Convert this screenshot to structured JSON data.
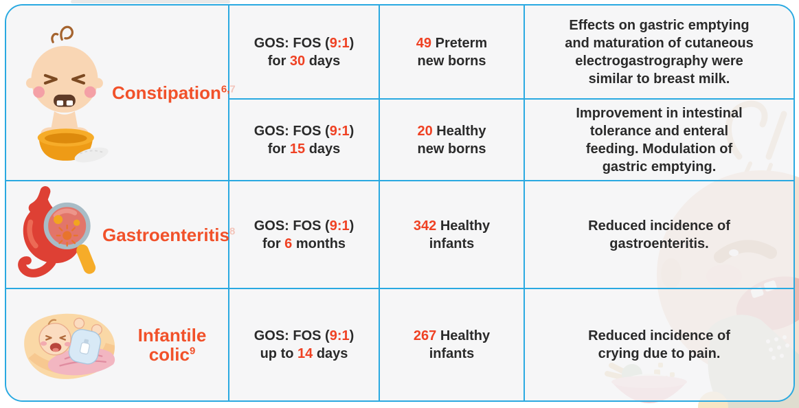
{
  "palette": {
    "table_border_blue": "#29A9E1",
    "cell_background": "#F3F3F4",
    "text_dark": "#2A2A2A",
    "condition_orange": "#F1512A",
    "highlight_orange": "#EF4123"
  },
  "conditions": [
    {
      "label": "Constipation",
      "ref": "6,7",
      "icon": "baby-on-potty-icon"
    },
    {
      "label": "Gastroenteritis",
      "ref": "8",
      "icon": "stomach-magnifier-icon"
    },
    {
      "label": "Infantile colic",
      "ref": "9",
      "icon": "crying-baby-blanket-icon"
    }
  ],
  "studies": [
    {
      "dose_line1": [
        [
          "GOS: FOS (",
          0
        ],
        [
          "9:1",
          1
        ],
        [
          ")",
          0
        ]
      ],
      "dose_line2": [
        [
          "for ",
          0
        ],
        [
          "30",
          1
        ],
        [
          " days",
          0
        ]
      ],
      "subjects_line1": [
        [
          "49",
          1
        ],
        [
          " Preterm",
          0
        ]
      ],
      "subjects_line2": [
        [
          "new borns",
          0
        ]
      ],
      "outcome_lines": [
        "Effects on gastric emptying",
        "and maturation of cutaneous",
        "electrogastrography were",
        "similar to breast milk."
      ]
    },
    {
      "dose_line1": [
        [
          "GOS: FOS (",
          0
        ],
        [
          "9:1",
          1
        ],
        [
          ")",
          0
        ]
      ],
      "dose_line2": [
        [
          "for ",
          0
        ],
        [
          "15",
          1
        ],
        [
          " days",
          0
        ]
      ],
      "subjects_line1": [
        [
          "20",
          1
        ],
        [
          " Healthy",
          0
        ]
      ],
      "subjects_line2": [
        [
          "new borns",
          0
        ]
      ],
      "outcome_lines": [
        "Improvement in intestinal",
        "tolerance and enteral",
        "feeding. Modulation of",
        "gastric emptying."
      ]
    },
    {
      "dose_line1": [
        [
          "GOS: FOS (",
          0
        ],
        [
          "9:1",
          1
        ],
        [
          ")",
          0
        ]
      ],
      "dose_line2": [
        [
          "for ",
          0
        ],
        [
          "6",
          1
        ],
        [
          " months",
          0
        ]
      ],
      "subjects_line1": [
        [
          "342",
          1
        ],
        [
          " Healthy",
          0
        ]
      ],
      "subjects_line2": [
        [
          "infants",
          0
        ]
      ],
      "outcome_lines": [
        "Reduced incidence of",
        "gastroenteritis."
      ]
    },
    {
      "dose_line1": [
        [
          "GOS: FOS (",
          0
        ],
        [
          "9:1",
          1
        ],
        [
          ")",
          0
        ]
      ],
      "dose_line2": [
        [
          "up to ",
          0
        ],
        [
          "14",
          1
        ],
        [
          " days",
          0
        ]
      ],
      "subjects_line1": [
        [
          "267",
          1
        ],
        [
          " Healthy",
          0
        ]
      ],
      "subjects_line2": [
        [
          "infants",
          0
        ]
      ],
      "outcome_lines": [
        "Reduced incidence of",
        "crying due to pain."
      ]
    }
  ]
}
